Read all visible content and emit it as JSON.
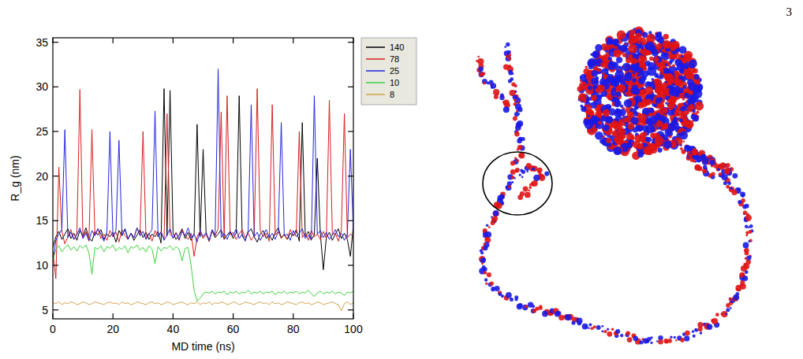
{
  "page_number": "3",
  "chart_data": {
    "type": "line",
    "x_label": "MD time (ns)",
    "y_label": "R_g (nm)",
    "xlim": [
      0,
      100
    ],
    "xticks": [
      0,
      20,
      40,
      60,
      80,
      100
    ],
    "ylim": [
      4,
      35.5
    ],
    "yticks": [
      5,
      10,
      15,
      20,
      25,
      30,
      35
    ],
    "grid": false,
    "legend": "right",
    "x": [
      0,
      1,
      2,
      3,
      4,
      5,
      6,
      7,
      8,
      9,
      10,
      11,
      12,
      13,
      14,
      15,
      16,
      17,
      18,
      19,
      20,
      21,
      22,
      23,
      24,
      25,
      26,
      27,
      28,
      29,
      30,
      31,
      32,
      33,
      34,
      35,
      36,
      37,
      38,
      39,
      40,
      41,
      42,
      43,
      44,
      45,
      46,
      47,
      48,
      49,
      50,
      51,
      52,
      53,
      54,
      55,
      56,
      57,
      58,
      59,
      60,
      61,
      62,
      63,
      64,
      65,
      66,
      67,
      68,
      69,
      70,
      71,
      72,
      73,
      74,
      75,
      76,
      77,
      78,
      79,
      80,
      81,
      82,
      83,
      84,
      85,
      86,
      87,
      88,
      89,
      90,
      91,
      92,
      93,
      94,
      95,
      96,
      97,
      98,
      99,
      100
    ],
    "series": [
      {
        "name": "140",
        "color": "#000000",
        "values": [
          12.0,
          13.2,
          13.8,
          12.9,
          13.5,
          14.1,
          13.0,
          13.6,
          12.8,
          13.9,
          13.3,
          14.2,
          13.1,
          12.7,
          13.8,
          13.4,
          14.0,
          12.9,
          13.5,
          13.2,
          13.7,
          12.6,
          13.9,
          13.3,
          14.1,
          13.0,
          13.6,
          12.8,
          13.4,
          14.0,
          13.1,
          13.7,
          12.9,
          13.5,
          13.2,
          13.8,
          12.5,
          29.8,
          13.3,
          29.6,
          13.6,
          12.9,
          13.4,
          14.1,
          13.0,
          13.7,
          12.8,
          13.5,
          25.8,
          13.2,
          23.0,
          13.6,
          12.7,
          13.9,
          13.1,
          13.5,
          14.0,
          12.9,
          13.4,
          13.8,
          13.0,
          13.6,
          29.0,
          13.3,
          12.8,
          13.7,
          14.1,
          13.2,
          12.6,
          13.5,
          13.9,
          13.0,
          13.4,
          12.8,
          13.7,
          14.2,
          13.1,
          13.5,
          12.9,
          13.6,
          13.3,
          14.0,
          12.7,
          26.0,
          13.2,
          13.8,
          12.9,
          13.4,
          22.0,
          13.6,
          9.5,
          13.1,
          13.7,
          12.8,
          13.5,
          14.1,
          13.0,
          13.6,
          12.9,
          11.0,
          14.5
        ]
      },
      {
        "name": "78",
        "color": "#d81e1e",
        "values": [
          11.5,
          8.5,
          21.0,
          13.8,
          12.4,
          13.2,
          14.0,
          12.9,
          13.6,
          29.7,
          13.1,
          13.8,
          12.7,
          25.2,
          13.4,
          14.1,
          13.0,
          13.5,
          12.8,
          13.9,
          13.2,
          13.7,
          12.6,
          14.0,
          13.3,
          12.9,
          13.6,
          13.1,
          14.2,
          13.4,
          25.0,
          13.0,
          13.6,
          12.7,
          13.9,
          13.2,
          13.8,
          12.9,
          27.0,
          13.5,
          13.1,
          13.7,
          12.8,
          14.0,
          13.3,
          12.9,
          13.6,
          11.0,
          13.2,
          13.8,
          13.0,
          13.5,
          12.7,
          13.9,
          13.3,
          14.1,
          27.2,
          13.0,
          29.0,
          13.4,
          13.7,
          12.9,
          13.5,
          14.0,
          13.1,
          13.6,
          12.8,
          13.3,
          29.8,
          13.9,
          13.2,
          13.6,
          12.7,
          28.0,
          13.4,
          13.8,
          13.0,
          13.5,
          12.9,
          14.0,
          13.3,
          13.7,
          25.0,
          13.1,
          13.6,
          12.8,
          13.9,
          13.2,
          13.5,
          12.9,
          13.8,
          13.0,
          28.5,
          13.4,
          13.6,
          12.7,
          13.9,
          27.0,
          13.1,
          13.5,
          13.2
        ]
      },
      {
        "name": "25",
        "color": "#2424e0",
        "values": [
          10.5,
          12.8,
          13.5,
          14.0,
          25.2,
          13.1,
          13.7,
          12.9,
          13.4,
          14.2,
          13.0,
          13.6,
          12.8,
          13.9,
          13.3,
          14.1,
          13.5,
          12.7,
          13.8,
          25.0,
          13.2,
          13.9,
          24.0,
          13.4,
          14.0,
          12.9,
          13.6,
          13.1,
          14.2,
          13.3,
          13.8,
          12.9,
          13.5,
          14.0,
          27.3,
          13.2,
          13.7,
          12.8,
          13.4,
          14.1,
          13.0,
          13.6,
          12.9,
          13.8,
          13.3,
          14.2,
          13.1,
          13.5,
          12.6,
          13.9,
          13.2,
          13.7,
          12.8,
          14.0,
          13.4,
          32.0,
          13.1,
          13.6,
          12.9,
          13.8,
          13.3,
          14.1,
          13.0,
          13.5,
          12.7,
          13.9,
          28.0,
          13.2,
          13.7,
          12.8,
          13.4,
          14.0,
          13.1,
          13.6,
          12.9,
          13.8,
          26.0,
          13.3,
          13.5,
          12.8,
          13.9,
          13.2,
          13.6,
          14.1,
          13.0,
          13.4,
          12.8,
          29.0,
          13.5,
          13.9,
          13.1,
          13.7,
          12.9,
          13.4,
          14.0,
          13.2,
          13.6,
          12.8,
          13.5,
          23.0,
          13.7
        ]
      },
      {
        "name": "10",
        "color": "#3cd23c",
        "values": [
          10.5,
          11.8,
          12.2,
          11.5,
          12.0,
          12.3,
          11.7,
          12.1,
          11.6,
          12.2,
          11.9,
          12.3,
          11.4,
          9.0,
          12.0,
          11.8,
          12.2,
          11.5,
          12.1,
          11.9,
          12.3,
          11.6,
          12.0,
          11.8,
          12.2,
          11.4,
          12.1,
          11.9,
          12.3,
          11.7,
          12.0,
          11.5,
          12.2,
          11.8,
          10.2,
          12.1,
          11.6,
          12.0,
          11.9,
          12.2,
          11.7,
          12.1,
          11.8,
          10.5,
          11.9,
          12.0,
          10.0,
          7.2,
          6.0,
          6.3,
          6.8,
          7.0,
          6.9,
          7.1,
          6.8,
          7.0,
          6.9,
          7.1,
          6.7,
          7.0,
          6.9,
          7.1,
          6.8,
          7.0,
          6.9,
          7.2,
          6.8,
          7.0,
          6.9,
          7.1,
          6.8,
          7.0,
          6.9,
          7.1,
          6.7,
          7.0,
          6.9,
          7.1,
          6.8,
          7.0,
          6.9,
          7.1,
          6.8,
          7.0,
          6.9,
          7.2,
          6.8,
          6.5,
          6.9,
          7.1,
          6.8,
          7.0,
          6.9,
          7.1,
          6.8,
          7.0,
          6.9,
          6.6,
          7.0,
          6.9,
          7.1
        ]
      },
      {
        "name": "8",
        "color": "#d4a24c",
        "values": [
          5.8,
          5.7,
          5.9,
          5.6,
          5.8,
          5.7,
          5.9,
          5.8,
          5.6,
          5.7,
          5.9,
          5.8,
          5.6,
          5.7,
          5.9,
          5.8,
          5.7,
          5.6,
          5.8,
          5.9,
          5.7,
          5.8,
          5.6,
          5.9,
          5.7,
          5.8,
          5.6,
          5.7,
          5.9,
          5.8,
          5.7,
          5.6,
          5.8,
          5.9,
          5.7,
          5.8,
          5.6,
          5.7,
          5.9,
          5.8,
          5.6,
          5.7,
          5.8,
          5.9,
          5.7,
          5.6,
          5.8,
          5.7,
          5.9,
          5.6,
          5.8,
          5.7,
          5.9,
          5.6,
          5.8,
          5.7,
          5.9,
          5.8,
          5.6,
          5.7,
          5.9,
          5.8,
          5.6,
          5.7,
          5.9,
          5.8,
          5.7,
          5.6,
          5.8,
          5.9,
          5.7,
          5.8,
          5.6,
          5.9,
          5.7,
          5.8,
          5.6,
          5.7,
          5.9,
          5.8,
          5.7,
          5.6,
          5.8,
          5.9,
          5.7,
          5.8,
          5.6,
          5.7,
          5.9,
          5.8,
          5.6,
          5.7,
          5.8,
          5.9,
          5.7,
          5.6,
          4.9,
          5.7,
          5.9,
          5.6,
          5.8
        ]
      }
    ]
  }
}
